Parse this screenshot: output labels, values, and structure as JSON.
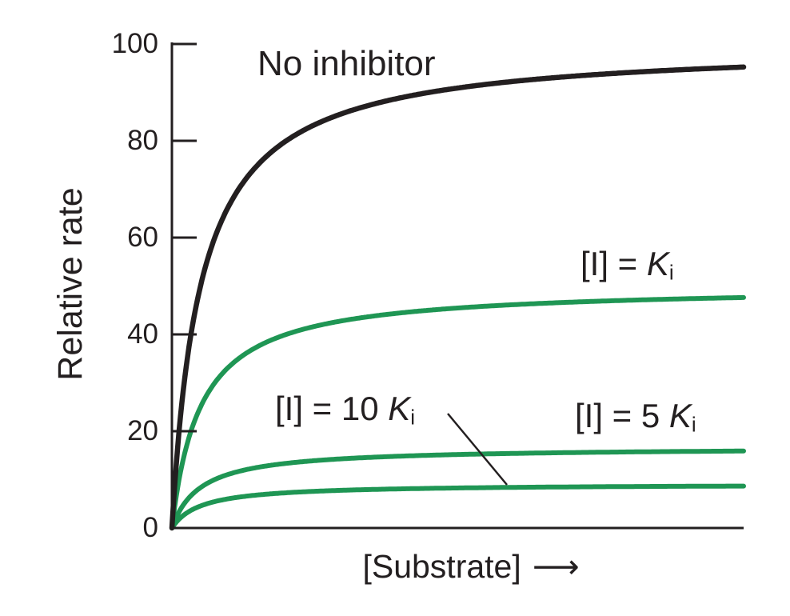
{
  "colors": {
    "ink": "#231f20",
    "green": "#1f9654",
    "background": "#ffffff"
  },
  "axis": {
    "ylabel": "Relative rate",
    "xlabel": "[Substrate]",
    "y_tick_labels": [
      "100",
      "80",
      "60",
      "40",
      "20",
      "0"
    ]
  },
  "icons": {
    "right_arrow": "⟶"
  },
  "labels": {
    "no_inhibitor": "No inhibitor",
    "i_eq_ki": {
      "prefix": "[I] = ",
      "k": "K",
      "sub": "i"
    },
    "i_eq_5ki": {
      "prefix": "[I] = 5 ",
      "k": "K",
      "sub": "i"
    },
    "i_eq_10ki": {
      "prefix": "[I] = 10 ",
      "k": "K",
      "sub": "i"
    }
  },
  "chart_data": {
    "type": "line",
    "title": "",
    "xlabel": "[Substrate]",
    "ylabel": "Relative rate",
    "grid": false,
    "legend_position": "inline-annotations",
    "x_axis": {
      "min": 0,
      "max": 20,
      "unit": "multiples of Km",
      "tick_labels_visible": false
    },
    "y_axis": {
      "min": 0,
      "max": 100,
      "ticks": [
        0,
        20,
        40,
        60,
        80,
        100
      ]
    },
    "model": "michaelis_menten_noncompetitive_inhibition v = vmax*S/(km+S)",
    "series": [
      {
        "id": "no-inhibitor",
        "name": "No inhibitor",
        "inhibitor_over_ki": 0,
        "vmax": 100,
        "km": 1,
        "color": "#231f20",
        "value_at_xmax": 95
      },
      {
        "id": "i-eq-ki",
        "name": "[I] = Ki",
        "inhibitor_over_ki": 1,
        "vmax": 50,
        "km": 1,
        "color": "#1f9654",
        "value_at_xmax": 48
      },
      {
        "id": "i-eq-5ki",
        "name": "[I] = 5 Ki",
        "inhibitor_over_ki": 5,
        "vmax": 16.7,
        "km": 1,
        "color": "#1f9654",
        "value_at_xmax": 16
      },
      {
        "id": "i-eq-10ki",
        "name": "[I] = 10 Ki",
        "inhibitor_over_ki": 10,
        "vmax": 9.1,
        "km": 1,
        "color": "#1f9654",
        "value_at_xmax": 8.7
      }
    ],
    "annotations": [
      {
        "text": "No inhibitor",
        "labels_series": "no-inhibitor",
        "leader_line": false
      },
      {
        "text": "[I] = Ki",
        "labels_series": "i-eq-ki",
        "leader_line": false
      },
      {
        "text": "[I] = 5 Ki",
        "labels_series": "i-eq-5ki",
        "leader_line": false
      },
      {
        "text": "[I] = 10 Ki",
        "labels_series": "i-eq-10ki",
        "leader_line": true
      }
    ]
  }
}
